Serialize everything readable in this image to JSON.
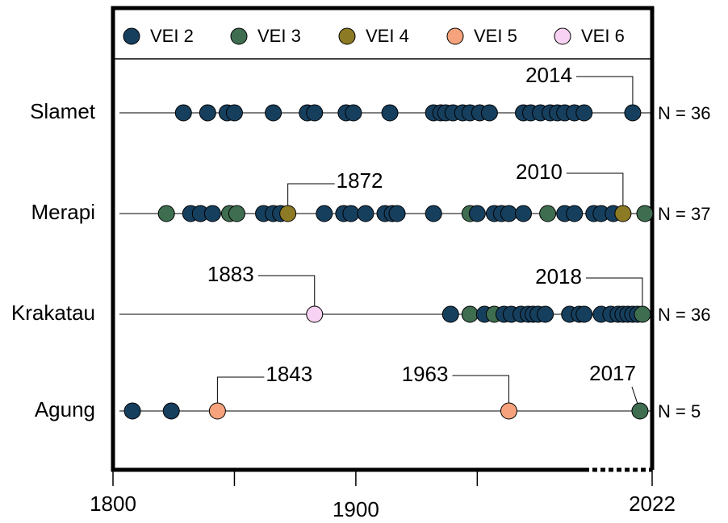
{
  "chart_data": {
    "type": "timeline",
    "xlim": [
      1800,
      2022
    ],
    "xticks": [
      1800,
      1900,
      2022
    ],
    "minor_xticks": [
      1850,
      1950
    ],
    "legend": [
      {
        "value": 2,
        "label": "VEI 2",
        "color": "#163f5e"
      },
      {
        "value": 3,
        "label": "VEI 3",
        "color": "#3e6d50"
      },
      {
        "value": 4,
        "label": "VEI 4",
        "color": "#8c7a24"
      },
      {
        "value": 5,
        "label": "VEI 5",
        "color": "#f6a27c"
      },
      {
        "value": 6,
        "label": "VEI 6",
        "color": "#f8d2f2"
      }
    ],
    "volcanoes": [
      {
        "name": "Slamet",
        "count": 36,
        "count_label": "N = 36",
        "years": [
          1829,
          1839,
          1847,
          1850,
          1866,
          1880,
          1883,
          1896,
          1899,
          1914,
          1932,
          1935,
          1937,
          1940,
          1944,
          1947,
          1951,
          1955,
          1969,
          1972,
          1976,
          1980,
          1983,
          1986,
          1990,
          1994,
          2014
        ],
        "vei": [
          2,
          2,
          2,
          2,
          2,
          2,
          2,
          2,
          2,
          2,
          2,
          2,
          2,
          2,
          2,
          2,
          2,
          2,
          2,
          2,
          2,
          2,
          2,
          2,
          2,
          2,
          2
        ],
        "annotations": [
          2014
        ]
      },
      {
        "name": "Merapi",
        "count": 37,
        "count_label": "N = 37",
        "years": [
          1822,
          1832,
          1836,
          1841,
          1848,
          1851,
          1862,
          1866,
          1869,
          1872,
          1887,
          1895,
          1898,
          1904,
          1912,
          1915,
          1917,
          1932,
          1947,
          1950,
          1957,
          1960,
          1963,
          1969,
          1979,
          1986,
          1990,
          1998,
          2001,
          2006,
          2010,
          2019
        ],
        "vei": [
          3,
          2,
          2,
          2,
          3,
          3,
          2,
          2,
          2,
          4,
          2,
          2,
          2,
          2,
          2,
          2,
          2,
          2,
          3,
          2,
          2,
          2,
          2,
          2,
          3,
          2,
          2,
          2,
          2,
          2,
          4,
          3
        ],
        "annotations": [
          1872,
          2010
        ]
      },
      {
        "name": "Krakatau",
        "count": 36,
        "count_label": "N = 36",
        "years": [
          1883,
          1939,
          1947,
          1953,
          1957,
          1961,
          1964,
          1968,
          1971,
          1973,
          1975,
          1978,
          1988,
          1992,
          1994,
          2001,
          2005,
          2008,
          2010,
          2012,
          2014,
          2016,
          2018
        ],
        "vei": [
          6,
          2,
          3,
          2,
          3,
          2,
          2,
          2,
          2,
          2,
          2,
          2,
          2,
          2,
          2,
          2,
          2,
          2,
          2,
          2,
          2,
          2,
          3
        ],
        "annotations": [
          1883,
          2018
        ]
      },
      {
        "name": "Agung",
        "count": 5,
        "count_label": "N = 5",
        "years": [
          1808,
          1824,
          1843,
          1963,
          2017
        ],
        "vei": [
          2,
          2,
          5,
          5,
          3
        ],
        "annotations": [
          1843,
          1963,
          2017
        ]
      }
    ]
  }
}
